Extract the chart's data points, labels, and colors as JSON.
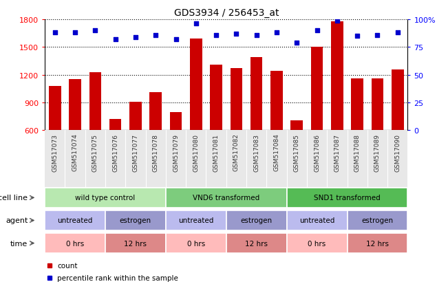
{
  "title": "GDS3934 / 256453_at",
  "samples": [
    "GSM517073",
    "GSM517074",
    "GSM517075",
    "GSM517076",
    "GSM517077",
    "GSM517078",
    "GSM517079",
    "GSM517080",
    "GSM517081",
    "GSM517082",
    "GSM517083",
    "GSM517084",
    "GSM517085",
    "GSM517086",
    "GSM517087",
    "GSM517088",
    "GSM517089",
    "GSM517090"
  ],
  "counts": [
    1080,
    1155,
    1230,
    720,
    910,
    1010,
    800,
    1590,
    1310,
    1270,
    1390,
    1240,
    710,
    1500,
    1780,
    1160,
    1160,
    1260
  ],
  "percentile": [
    88,
    88,
    90,
    82,
    84,
    86,
    82,
    96,
    86,
    87,
    86,
    88,
    79,
    90,
    99,
    85,
    86,
    88
  ],
  "ylim_left": [
    600,
    1800
  ],
  "ylim_right": [
    0,
    100
  ],
  "yticks_left": [
    600,
    900,
    1200,
    1500,
    1800
  ],
  "yticks_right": [
    0,
    25,
    50,
    75,
    100
  ],
  "bar_color": "#cc0000",
  "dot_color": "#0000cc",
  "cell_line_groups": [
    {
      "label": "wild type control",
      "start": 0,
      "end": 6,
      "color": "#b8e8b0"
    },
    {
      "label": "VND6 transformed",
      "start": 6,
      "end": 12,
      "color": "#7dcc7d"
    },
    {
      "label": "SND1 transformed",
      "start": 12,
      "end": 18,
      "color": "#55bb55"
    }
  ],
  "agent_groups": [
    {
      "label": "untreated",
      "start": 0,
      "end": 3,
      "color": "#bbbbee"
    },
    {
      "label": "estrogen",
      "start": 3,
      "end": 6,
      "color": "#9999cc"
    },
    {
      "label": "untreated",
      "start": 6,
      "end": 9,
      "color": "#bbbbee"
    },
    {
      "label": "estrogen",
      "start": 9,
      "end": 12,
      "color": "#9999cc"
    },
    {
      "label": "untreated",
      "start": 12,
      "end": 15,
      "color": "#bbbbee"
    },
    {
      "label": "estrogen",
      "start": 15,
      "end": 18,
      "color": "#9999cc"
    }
  ],
  "time_groups": [
    {
      "label": "0 hrs",
      "start": 0,
      "end": 3,
      "color": "#ffbbbb"
    },
    {
      "label": "12 hrs",
      "start": 3,
      "end": 6,
      "color": "#dd8888"
    },
    {
      "label": "0 hrs",
      "start": 6,
      "end": 9,
      "color": "#ffbbbb"
    },
    {
      "label": "12 hrs",
      "start": 9,
      "end": 12,
      "color": "#dd8888"
    },
    {
      "label": "0 hrs",
      "start": 12,
      "end": 15,
      "color": "#ffbbbb"
    },
    {
      "label": "12 hrs",
      "start": 15,
      "end": 18,
      "color": "#dd8888"
    }
  ],
  "legend_items": [
    {
      "color": "#cc0000",
      "label": "count"
    },
    {
      "color": "#0000cc",
      "label": "percentile rank within the sample"
    }
  ]
}
